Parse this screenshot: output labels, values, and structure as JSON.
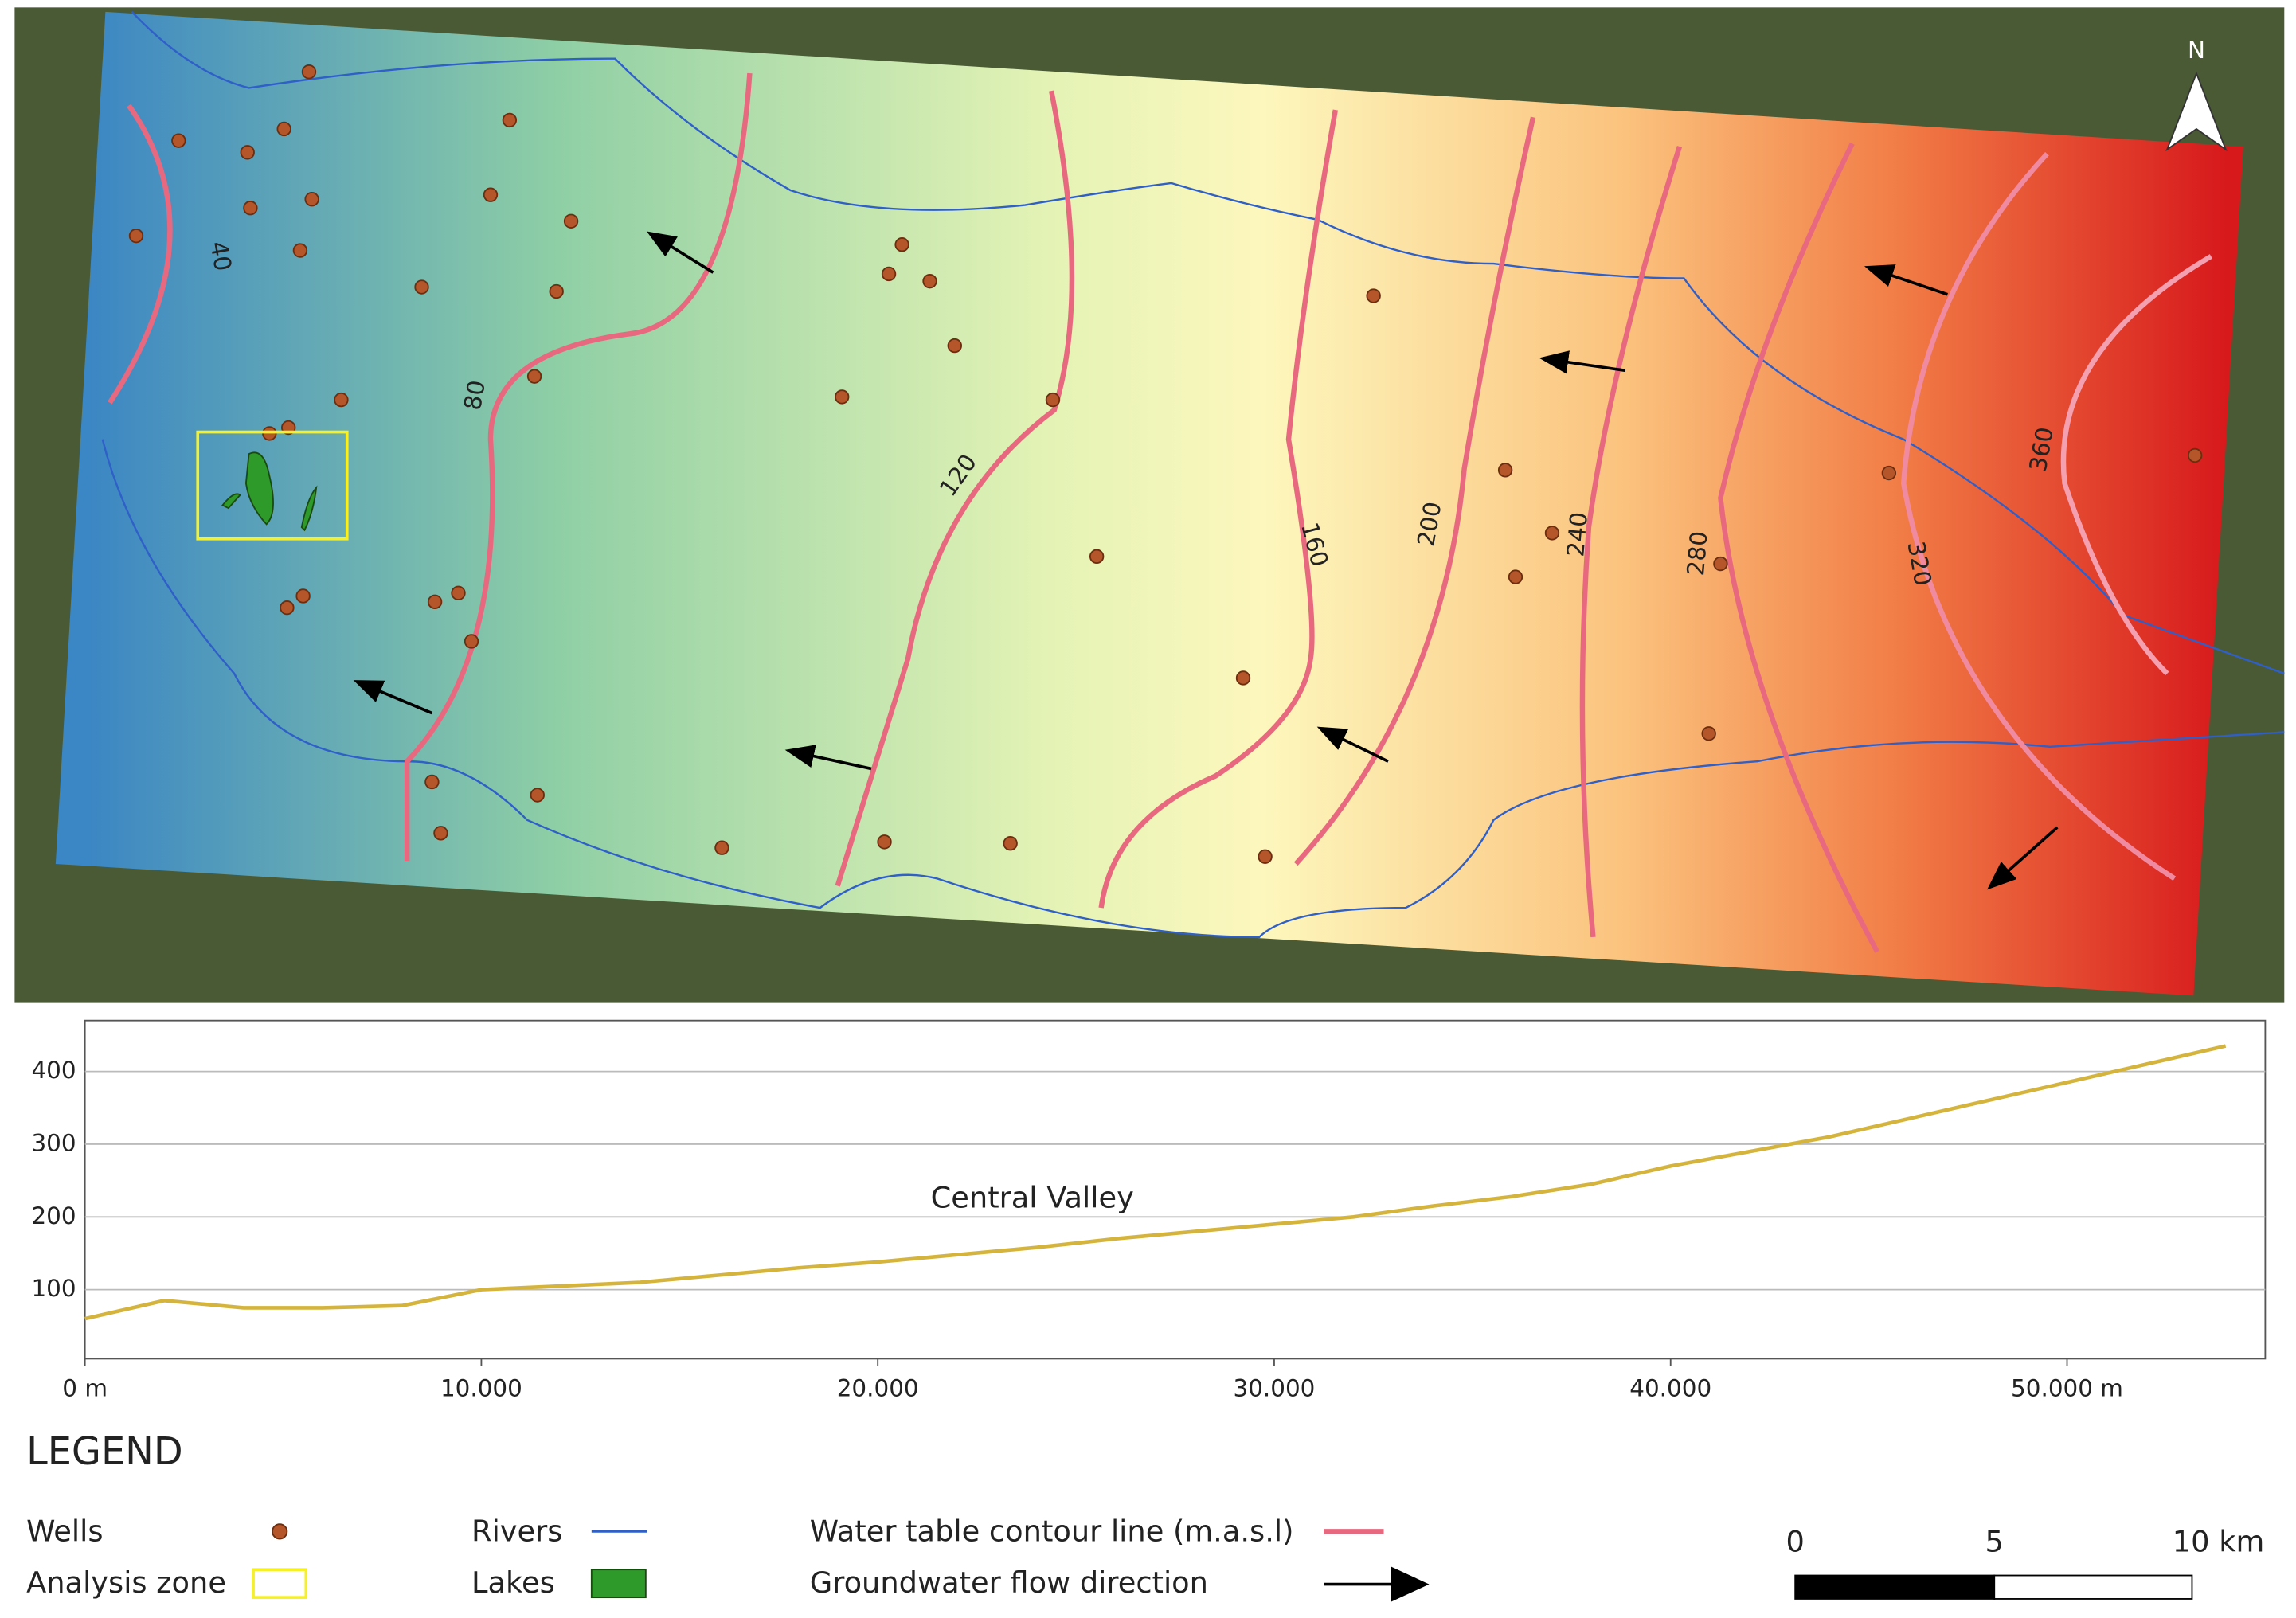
{
  "map": {
    "north_label": "N",
    "contour_labels": [
      "40",
      "80",
      "120",
      "160",
      "200",
      "240",
      "280",
      "320",
      "360"
    ]
  },
  "chart_data": {
    "type": "line",
    "annotation": "Central Valley",
    "x": [
      0,
      2000,
      4000,
      6000,
      8000,
      10000,
      12000,
      14000,
      16000,
      18000,
      20000,
      22000,
      24000,
      26000,
      28000,
      30000,
      32000,
      34000,
      36000,
      38000,
      40000,
      42000,
      44000,
      46000,
      48000,
      50000,
      52000,
      54000
    ],
    "series": [
      {
        "color": "#d4b43c",
        "values": [
          60,
          85,
          75,
          75,
          78,
          100,
          105,
          110,
          120,
          130,
          138,
          148,
          158,
          170,
          180,
          190,
          200,
          215,
          228,
          245,
          270,
          290,
          310,
          335,
          360,
          385,
          410,
          435
        ]
      }
    ],
    "xlim": [
      0,
      55000
    ],
    "ylim": [
      5,
      470
    ],
    "xticks": [
      {
        "value": 0,
        "label": "0 m"
      },
      {
        "value": 10000,
        "label": "10.000"
      },
      {
        "value": 20000,
        "label": "20.000"
      },
      {
        "value": 30000,
        "label": "30.000"
      },
      {
        "value": 40000,
        "label": "40.000"
      },
      {
        "value": 50000,
        "label": "50.000 m"
      }
    ],
    "yticks": [
      100,
      200,
      300,
      400
    ],
    "grid": true
  },
  "legend": {
    "title": "LEGEND",
    "items": [
      "Wells",
      "Analysis zone",
      "Rivers",
      "Lakes",
      "Water table contour line (m.a.s.l)",
      "Groundwater flow direction"
    ]
  },
  "scale_bar": {
    "labels": [
      "0",
      "5",
      "10 km"
    ]
  }
}
